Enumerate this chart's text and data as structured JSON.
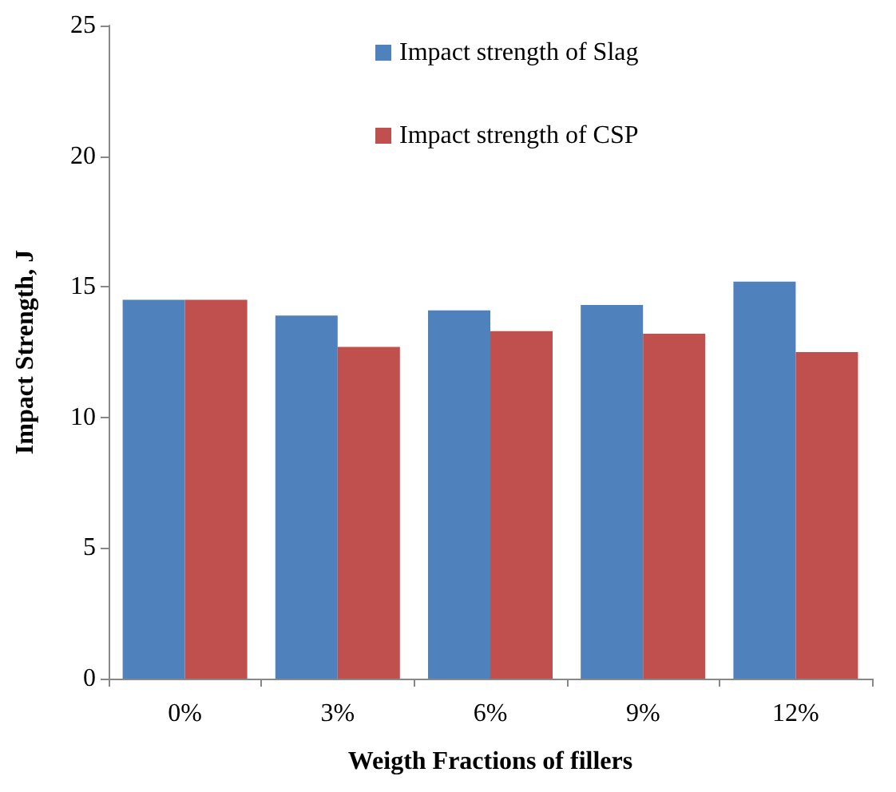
{
  "chart_data": {
    "type": "bar",
    "xlabel": "Weigth Fractions of fillers",
    "ylabel": "Impact Strength, J",
    "categories": [
      "0%",
      "3%",
      "6%",
      "9%",
      "12%"
    ],
    "series": [
      {
        "name": "Impact strength of Slag",
        "color": "#4f81bd",
        "values": [
          14.5,
          13.9,
          14.1,
          14.3,
          15.2
        ]
      },
      {
        "name": "Impact strength of CSP",
        "color": "#c0504d",
        "values": [
          14.5,
          12.7,
          13.3,
          13.2,
          12.5
        ]
      }
    ],
    "ylim": [
      0,
      25
    ],
    "yticks": [
      0,
      5,
      10,
      15,
      20,
      25
    ],
    "grid": false,
    "legend": "top"
  }
}
